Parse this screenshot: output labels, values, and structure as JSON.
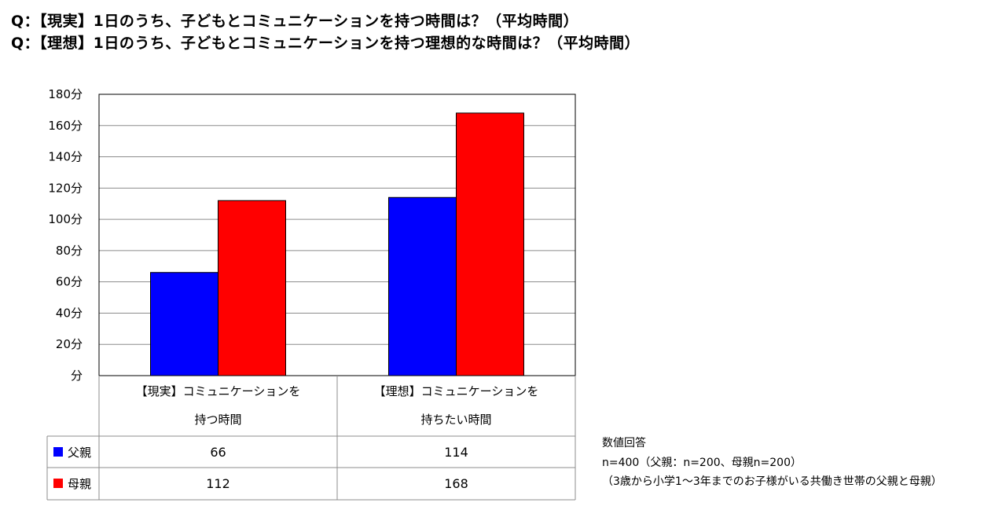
{
  "titles": [
    "Q：【現実】1日のうち、子どもとコミュニケーションを持つ時間は？（平均時間）",
    "Q：【理想】1日のうち、子どもとコミュニケーションを持つ理想的な時間は？（平均時間）"
  ],
  "colors": {
    "father": "#0000ff",
    "mother": "#ff0000"
  },
  "chart_data": {
    "type": "bar",
    "categories": [
      [
        "【現実】コミュニケーションを",
        "持つ時間"
      ],
      [
        "【理想】コミュニケーションを",
        "持ちたい時間"
      ]
    ],
    "series": [
      {
        "name": "父親",
        "values": [
          66,
          114
        ],
        "color": "#0000ff"
      },
      {
        "name": "母親",
        "values": [
          112,
          168
        ],
        "color": "#ff0000"
      }
    ],
    "yticks": [
      "分",
      "20分",
      "40分",
      "60分",
      "80分",
      "100分",
      "120分",
      "140分",
      "160分",
      "180分"
    ],
    "ylim": [
      0,
      180
    ],
    "grid": true,
    "legend": "data-table"
  },
  "notes": [
    "数値回答",
    "n=400（父親：n=200、母親n=200）",
    "（3歳から小学1～3年までのお子様がいる共働き世帯の父親と母親）"
  ]
}
